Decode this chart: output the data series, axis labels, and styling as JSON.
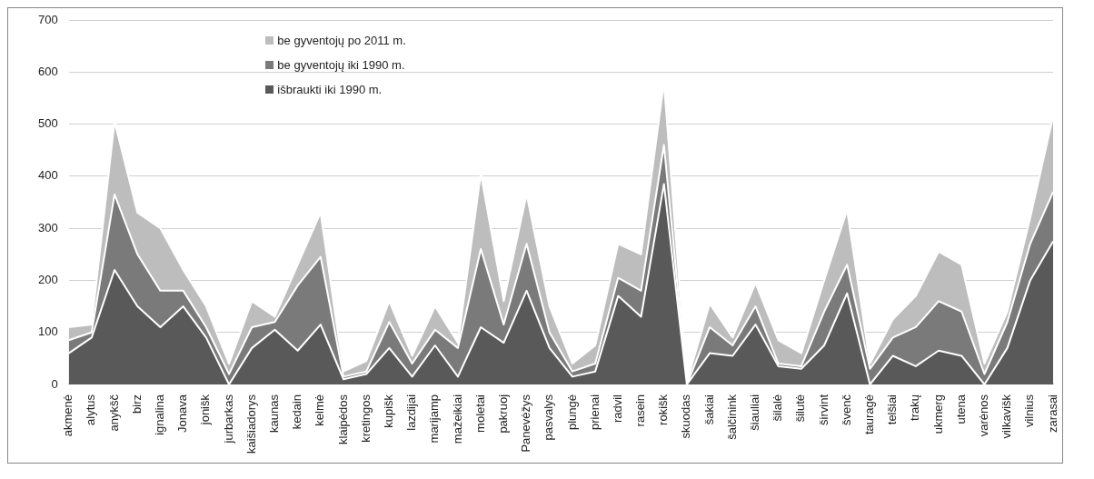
{
  "chart_data": {
    "type": "area",
    "stacked": true,
    "grid": "y",
    "legend": "top left",
    "marker": "none",
    "categories": [
      "akmenė",
      "alytus",
      "anykšč",
      "birz",
      "ignalina",
      "Jonava",
      "jonišk",
      "jurbarkas",
      "kaišiadorys",
      "kaunas",
      "kedain",
      "kelmė",
      "klaipėdos",
      "kretingos",
      "kupišk",
      "lazdijai",
      "marijamp",
      "mažeikiai",
      "moletai",
      "pakruoj",
      "Panevėžys",
      "pasvalys",
      "plungė",
      "prienai",
      "radvil",
      "rasein",
      "rokišk",
      "skuodas",
      "šakiai",
      "šalčinink",
      "šiauliai",
      "šilalė",
      "šilutė",
      "širvint",
      "švenč",
      "tauragė",
      "telšiai",
      "trakų",
      "ukmerg",
      "utena",
      "varėnos",
      "vilkavišk",
      "vilnius",
      "zarasai"
    ],
    "ylim": [
      0,
      700
    ],
    "yticks": [
      0,
      100,
      200,
      300,
      400,
      500,
      600,
      700
    ],
    "series": [
      {
        "name": "išbraukti iki 1990 m.",
        "color": "#595959",
        "values": [
          60,
          90,
          220,
          150,
          110,
          150,
          90,
          0,
          70,
          105,
          65,
          115,
          10,
          20,
          70,
          15,
          75,
          15,
          110,
          80,
          180,
          70,
          15,
          25,
          170,
          130,
          385,
          0,
          60,
          55,
          115,
          35,
          30,
          75,
          175,
          0,
          55,
          35,
          65,
          55,
          0,
          70,
          200,
          275
        ]
      },
      {
        "name": "be gyventojų iki 1990 m.",
        "color": "#7a7a7a",
        "values": [
          25,
          10,
          145,
          100,
          70,
          30,
          20,
          20,
          40,
          15,
          125,
          130,
          5,
          5,
          50,
          25,
          30,
          55,
          150,
          35,
          90,
          30,
          10,
          15,
          35,
          50,
          75,
          0,
          50,
          20,
          35,
          5,
          5,
          65,
          55,
          30,
          35,
          75,
          95,
          85,
          20,
          50,
          70,
          95
        ]
      },
      {
        "name": "be gyventojų po 2011 m.",
        "color": "#bdbdbd",
        "values": [
          25,
          15,
          140,
          80,
          120,
          40,
          40,
          20,
          50,
          10,
          40,
          85,
          10,
          20,
          40,
          15,
          45,
          10,
          145,
          45,
          95,
          50,
          15,
          35,
          65,
          70,
          120,
          5,
          45,
          15,
          45,
          45,
          25,
          60,
          105,
          10,
          35,
          60,
          95,
          90,
          20,
          20,
          50,
          145
        ]
      }
    ]
  }
}
